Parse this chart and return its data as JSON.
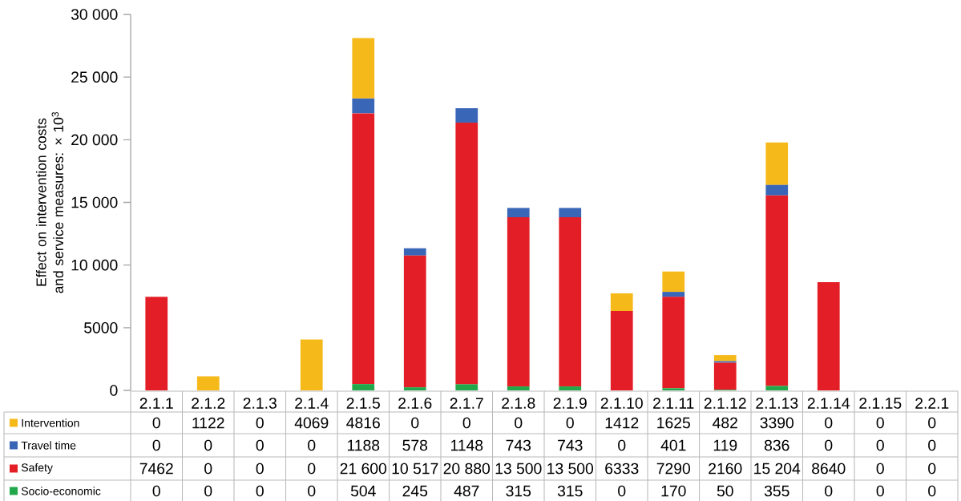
{
  "chart_data": {
    "type": "bar",
    "stacked": true,
    "ylabel": "Effect on intervention costs and service measures: × 10$^{3}$",
    "categories": [
      "2.1.1",
      "2.1.2",
      "2.1.3",
      "2.1.4",
      "2.1.5",
      "2.1.6",
      "2.1.7",
      "2.1.8",
      "2.1.9",
      "2.1.10",
      "2.1.11",
      "2.1.12",
      "2.1.13",
      "2.1.14",
      "2.1.15",
      "2.2.1"
    ],
    "ylim": [
      0,
      30000
    ],
    "yticks": [
      0,
      5000,
      {
        "value": 10000,
        "label": "10 000"
      },
      {
        "value": 15000,
        "label": "15 000"
      },
      {
        "value": 20000,
        "label": "20 000"
      },
      {
        "value": 25000,
        "label": "25 000"
      },
      {
        "value": 30000,
        "label": "30 000"
      }
    ],
    "legend": "bottom left",
    "series": [
      {
        "name": "Socio-economic",
        "color": "#22a84a",
        "values": [
          0,
          0,
          0,
          0,
          504,
          245,
          487,
          315,
          315,
          0,
          170,
          50,
          355,
          0,
          0,
          0
        ],
        "value_labels": [
          "0",
          "0",
          "0",
          "0",
          "504",
          "245",
          "487",
          "315",
          "315",
          "0",
          "170",
          "50",
          "355",
          "0",
          "0",
          "0"
        ]
      },
      {
        "name": "Safety",
        "color": "#e41e26",
        "values": [
          7462,
          0,
          0,
          0,
          21600,
          10517,
          20880,
          13500,
          13500,
          6333,
          7290,
          2160,
          15204,
          8640,
          0,
          0
        ],
        "value_labels": [
          "7462",
          "0",
          "0",
          "0",
          "21 600",
          "10 517",
          "20 880",
          "13 500",
          "13 500",
          "6333",
          "7290",
          "2160",
          "15 204",
          "8640",
          "0",
          "0"
        ]
      },
      {
        "name": "Travel time",
        "color": "#3a66b8",
        "values": [
          0,
          0,
          0,
          0,
          1188,
          578,
          1148,
          743,
          743,
          0,
          401,
          119,
          836,
          0,
          0,
          0
        ],
        "value_labels": [
          "0",
          "0",
          "0",
          "0",
          "1188",
          "578",
          "1148",
          "743",
          "743",
          "0",
          "401",
          "119",
          "836",
          "0",
          "0",
          "0"
        ]
      },
      {
        "name": "Intervention",
        "color": "#f6b91a",
        "values": [
          0,
          1122,
          0,
          4069,
          4816,
          0,
          0,
          0,
          0,
          1412,
          1625,
          482,
          3390,
          0,
          0,
          0
        ],
        "value_labels": [
          "0",
          "1122",
          "0",
          "4069",
          "4816",
          "0",
          "0",
          "0",
          "0",
          "1412",
          "1625",
          "482",
          "3390",
          "0",
          "0",
          "0"
        ]
      }
    ]
  }
}
